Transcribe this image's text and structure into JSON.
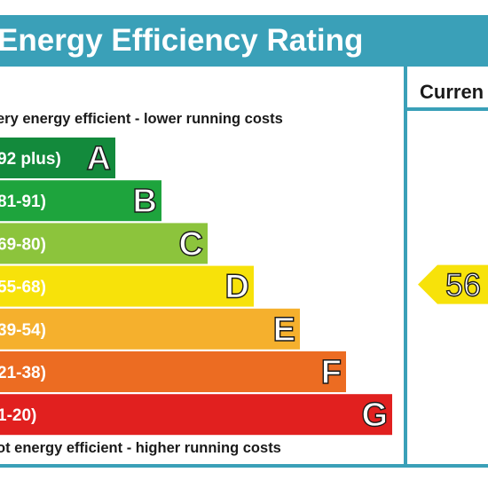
{
  "header": {
    "title": "Energy Efficiency Rating"
  },
  "notes": {
    "top": "ery energy efficient - lower running costs",
    "bottom": "ot energy efficient - higher running costs"
  },
  "column": {
    "header": "Curren"
  },
  "colors": {
    "A": "#138a3c",
    "B": "#1ea43d",
    "C": "#8cc43c",
    "D": "#f7e20a",
    "E": "#f5b02d",
    "F": "#ec6c22",
    "G": "#e1201f",
    "frame": "#3aa0b8",
    "arrow": "#f7e20a"
  },
  "chart_data": {
    "type": "bar",
    "title": "Energy Efficiency Rating",
    "categories": [
      "A",
      "B",
      "C",
      "D",
      "E",
      "F",
      "G"
    ],
    "ranges": [
      "92 plus)",
      "81-91)",
      "69-80)",
      "55-68)",
      "39-54)",
      "21-38)",
      "1-20)"
    ],
    "current_rating": "56"
  }
}
